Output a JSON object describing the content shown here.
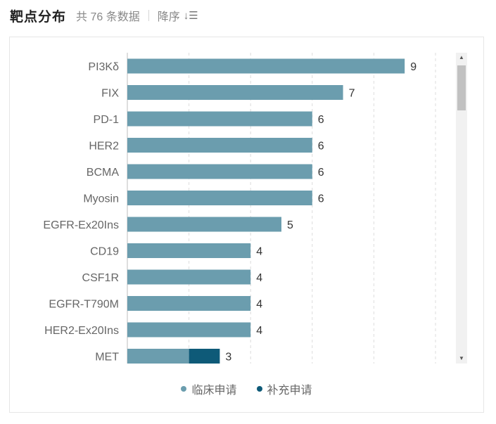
{
  "header": {
    "title": "靶点分布",
    "count_text": "共 76 条数据",
    "sort_label": "降序",
    "sort_icon": "sort-descending-icon"
  },
  "colors": {
    "primary": "#6b9dae",
    "secondary": "#0e5a78",
    "grid": "#dcdcdc",
    "label": "#666666"
  },
  "legend": [
    {
      "label": "临床申请",
      "color": "#6b9dae"
    },
    {
      "label": "补充申请",
      "color": "#0e5a78"
    }
  ],
  "chart_data": {
    "type": "bar",
    "orientation": "horizontal",
    "stacked": true,
    "categories": [
      "PI3Kδ",
      "FIX",
      "PD-1",
      "HER2",
      "BCMA",
      "Myosin",
      "EGFR-Ex20Ins",
      "CD19",
      "CSF1R",
      "EGFR-T790M",
      "HER2-Ex20Ins",
      "MET"
    ],
    "series": [
      {
        "name": "临床申请",
        "values": [
          9,
          7,
          6,
          6,
          6,
          6,
          5,
          4,
          4,
          4,
          4,
          2
        ]
      },
      {
        "name": "补充申请",
        "values": [
          0,
          0,
          0,
          0,
          0,
          0,
          0,
          0,
          0,
          0,
          0,
          1
        ]
      }
    ],
    "totals": [
      9,
      7,
      6,
      6,
      6,
      6,
      5,
      4,
      4,
      4,
      4,
      3
    ],
    "xlim": [
      0,
      10
    ],
    "grid": true,
    "legend_position": "bottom"
  }
}
